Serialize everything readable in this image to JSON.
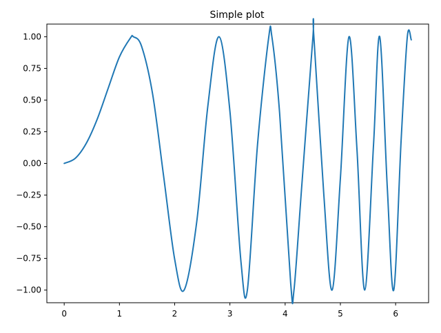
{
  "chart_data": {
    "type": "line",
    "title": "Simple plot",
    "xlabel": "",
    "ylabel": "",
    "xlim": [
      -0.314,
      6.597
    ],
    "ylim": [
      -1.1,
      1.1
    ],
    "xticks": [
      0,
      1,
      2,
      3,
      4,
      5,
      6
    ],
    "xtick_labels": [
      "0",
      "1",
      "2",
      "3",
      "4",
      "5",
      "6"
    ],
    "yticks": [
      -1.0,
      -0.75,
      -0.5,
      -0.25,
      0.0,
      0.25,
      0.5,
      0.75,
      1.0
    ],
    "ytick_labels": [
      "−1.00",
      "−0.75",
      "−0.50",
      "−0.25",
      "0.00",
      "0.25",
      "0.50",
      "0.75",
      "1.00"
    ],
    "grid": false,
    "legend": "none",
    "colors": {
      "line": "#1f77b4",
      "axes": "#000000",
      "background": "#ffffff"
    },
    "series": [
      {
        "x": [
          0,
          0.2,
          0.4,
          0.6,
          0.8,
          1.0,
          1.2,
          1.253,
          1.4,
          1.6,
          1.8,
          2.0,
          2.171,
          2.4,
          2.6,
          2.802,
          3.0,
          3.2,
          3.316,
          3.5,
          3.7,
          3.76,
          3.9,
          4.1,
          4.16,
          4.3,
          4.5,
          4.52,
          4.7,
          4.85,
          5.0,
          5.156,
          5.3,
          5.441,
          5.6,
          5.712,
          5.85,
          5.966,
          6.1,
          6.212,
          6.283
        ],
        "y": [
          0.0,
          0.04,
          0.159,
          0.352,
          0.598,
          0.841,
          0.991,
          1.0,
          0.926,
          0.549,
          -0.101,
          -0.757,
          -1.0,
          -0.459,
          0.451,
          1.0,
          0.412,
          -0.776,
          -1.0,
          0.149,
          0.987,
          1.0,
          0.397,
          -0.944,
          -1.0,
          -0.183,
          0.982,
          1.0,
          -0.246,
          -1.0,
          -0.118,
          1.0,
          0.112,
          -1.0,
          0.147,
          1.0,
          -0.197,
          -1.0,
          0.186,
          1.0,
          0.976
        ]
      }
    ]
  }
}
